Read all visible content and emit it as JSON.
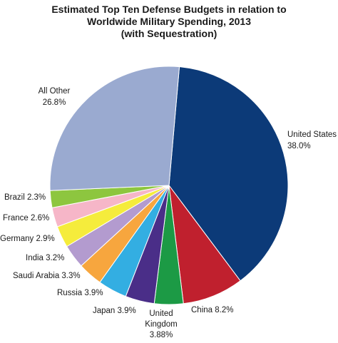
{
  "chart_data": {
    "type": "pie",
    "title": [
      "Estimated Top Ten Defense Budgets in relation to",
      "Worldwide Military Spending, 2013",
      "(with Sequestration)"
    ],
    "slices": [
      {
        "name": "United States",
        "value": 38.0,
        "label": [
          "United States",
          "38.0%"
        ],
        "color": "#0c3a78"
      },
      {
        "name": "China",
        "value": 8.2,
        "label": [
          "China 8.2%"
        ],
        "color": "#c0202e"
      },
      {
        "name": "United Kingdom",
        "value": 3.88,
        "label": [
          "United",
          "Kingdom",
          "3.88%"
        ],
        "color": "#1c9a45"
      },
      {
        "name": "Japan",
        "value": 3.9,
        "label": [
          "Japan 3.9%"
        ],
        "color": "#4a2e88"
      },
      {
        "name": "Russia",
        "value": 3.9,
        "label": [
          "Russia 3.9%"
        ],
        "color": "#33aee2"
      },
      {
        "name": "Saudi Arabia",
        "value": 3.3,
        "label": [
          "Saudi Arabia 3.3%"
        ],
        "color": "#f7a63e"
      },
      {
        "name": "India",
        "value": 3.2,
        "label": [
          "India 3.2%"
        ],
        "color": "#b39bcf"
      },
      {
        "name": "Germany",
        "value": 2.9,
        "label": [
          "Germany 2.9%"
        ],
        "color": "#f5ec3c"
      },
      {
        "name": "France",
        "value": 2.6,
        "label": [
          "France 2.6%"
        ],
        "color": "#f6b6c8"
      },
      {
        "name": "Brazil",
        "value": 2.3,
        "label": [
          "Brazil 2.3%"
        ],
        "color": "#8dc63f"
      },
      {
        "name": "All Other",
        "value": 26.8,
        "label": [
          "All Other",
          "26.8%"
        ],
        "color": "#9aaad0"
      }
    ],
    "start_angle_deg": 5,
    "direction": "clockwise"
  }
}
